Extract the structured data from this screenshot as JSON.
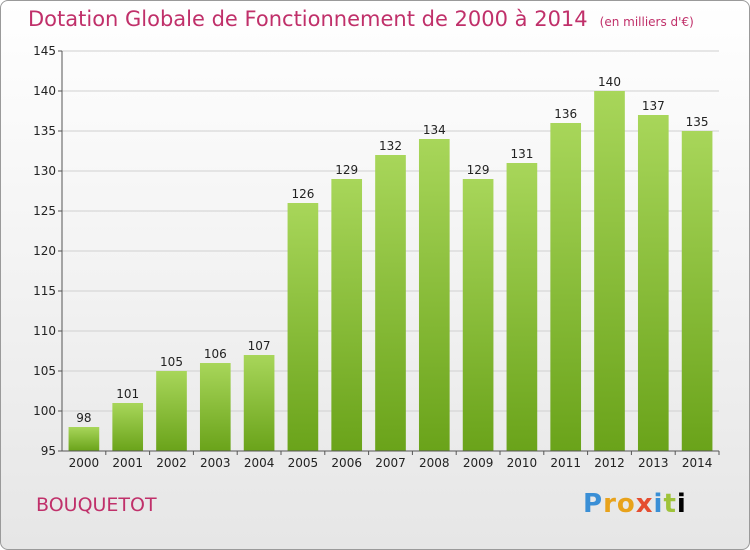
{
  "header": {
    "title": "Dotation Globale de Fonctionnement de 2000 à 2014",
    "subtitle": "(en milliers d'€)"
  },
  "footer": {
    "place": "BOUQUETOT",
    "logo": "Proxiti"
  },
  "colors": {
    "title": "#c0306a",
    "bar_light": "#a8d65a",
    "bar_dark": "#6aa31a",
    "grid": "#d0d0d0",
    "axis": "#555555"
  },
  "chart_data": {
    "type": "bar",
    "categories": [
      "2000",
      "2001",
      "2002",
      "2003",
      "2004",
      "2005",
      "2006",
      "2007",
      "2008",
      "2009",
      "2010",
      "2011",
      "2012",
      "2013",
      "2014"
    ],
    "values": [
      98,
      101,
      105,
      106,
      107,
      126,
      129,
      132,
      134,
      129,
      131,
      136,
      140,
      137,
      135
    ],
    "ylim": [
      95,
      145
    ],
    "yticks": [
      95,
      100,
      105,
      110,
      115,
      120,
      125,
      130,
      135,
      140,
      145
    ],
    "grid": true
  }
}
